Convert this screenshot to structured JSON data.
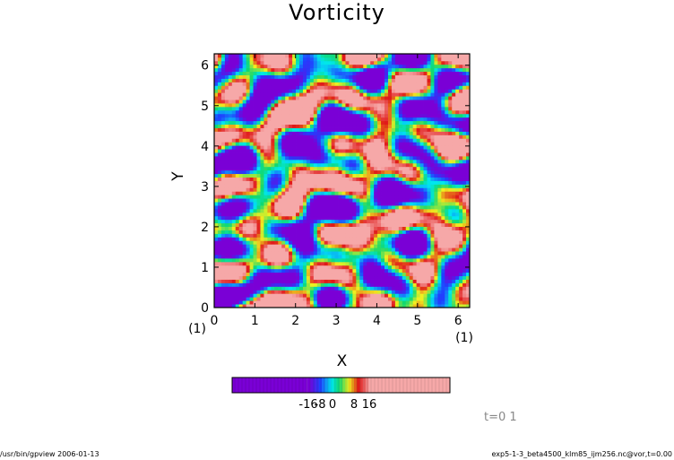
{
  "title": "Vorticity",
  "footer": {
    "left": "/usr/bin/gpview   2006-01-13",
    "right": "exp5-1-3_beta4500_klm85_ijm256.nc@vor,t=0.00"
  },
  "time_label": "t=0 1",
  "colors": {
    "purple": "#7a00d6",
    "blue": "#2040ff",
    "cyan": "#00e8f0",
    "green": "#10d870",
    "yellow": "#f0f020",
    "red": "#e01818",
    "pink": "#f6a8a8",
    "frame": "#000000"
  },
  "chart_data": {
    "type": "heatmap",
    "title": "Vorticity",
    "xlabel": "X",
    "ylabel": "Y",
    "xlim": [
      0,
      6.283
    ],
    "ylim": [
      0,
      6.283
    ],
    "x_ticks": [
      "0",
      "1",
      "2",
      "3",
      "4",
      "5",
      "6"
    ],
    "y_ticks": [
      "0",
      "1",
      "2",
      "3",
      "4",
      "5",
      "6"
    ],
    "x_unit": "(1)",
    "y_unit": "(1)",
    "colorbar": {
      "levels": [
        -16,
        -8,
        0,
        8,
        16
      ],
      "tick_text": [
        "-16",
        "-8",
        "0",
        "8",
        "16"
      ],
      "saturated_min_color": "#7a00d6",
      "saturated_max_color": "#f6a8a8"
    }
  }
}
